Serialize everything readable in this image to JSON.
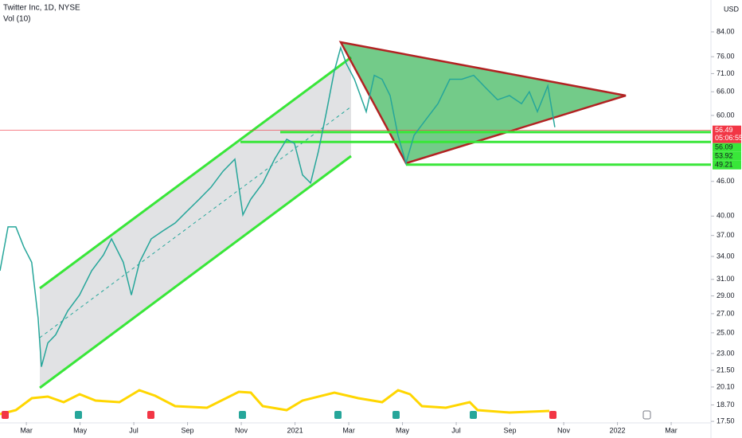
{
  "chart_data": {
    "type": "line",
    "title": "Twitter Inc, 1D, NYSE",
    "subtitle": "Vol (10)",
    "currency": "USD",
    "log_scale": true,
    "color": "#26a69a",
    "x": [
      1.02,
      1.32,
      1.61,
      1.91,
      2.2,
      2.44,
      2.56,
      2.8,
      3.09,
      3.54,
      3.98,
      4.43,
      4.87,
      5.17,
      5.61,
      5.91,
      6.21,
      6.65,
      7.09,
      7.54,
      7.98,
      8.43,
      8.87,
      9.32,
      9.76,
      10.06,
      10.35,
      10.8,
      11.24,
      11.69,
      11.98,
      12.28,
      12.58,
      12.87,
      13.17,
      13.46,
      13.7,
      13.91,
      14.21,
      14.65,
      14.95,
      15.24,
      15.54,
      15.83,
      16.13,
      16.43,
      16.87,
      17.32,
      17.76,
      18.21,
      18.65,
      19.09,
      19.54,
      19.98,
      20.43,
      20.72,
      21.02,
      21.41,
      21.67
    ],
    "values": [
      32.1,
      38.3,
      38.3,
      35.3,
      33.2,
      26.5,
      21.8,
      24.0,
      24.8,
      27.3,
      29.1,
      32.1,
      34.2,
      36.5,
      33.2,
      29.1,
      33.2,
      36.5,
      37.7,
      38.9,
      40.8,
      42.8,
      44.9,
      47.9,
      50.3,
      40.2,
      42.8,
      45.7,
      50.3,
      54.5,
      53.6,
      47.2,
      45.7,
      51.9,
      60.9,
      71.6,
      78.8,
      73.9,
      69.4,
      60.9,
      70.5,
      69.4,
      65.0,
      55.4,
      49.5,
      55.4,
      59.0,
      62.9,
      69.4,
      69.4,
      70.5,
      67.1,
      63.9,
      65.0,
      62.9,
      66.0,
      60.9,
      67.6,
      57.2
    ],
    "xlim": [
      1.02,
      27.48
    ],
    "ylim": [
      17.45,
      95.5
    ],
    "xticks": [
      {
        "value": 2,
        "label": "Mar"
      },
      {
        "value": 4,
        "label": "May"
      },
      {
        "value": 6,
        "label": "Jul"
      },
      {
        "value": 8,
        "label": "Sep"
      },
      {
        "value": 10,
        "label": "Nov"
      },
      {
        "value": 12,
        "label": "2021"
      },
      {
        "value": 14,
        "label": "Mar"
      },
      {
        "value": 16,
        "label": "May"
      },
      {
        "value": 18,
        "label": "Jul"
      },
      {
        "value": 20,
        "label": "Sep"
      },
      {
        "value": 22,
        "label": "Nov"
      },
      {
        "value": 24,
        "label": "2022"
      },
      {
        "value": 26,
        "label": "Mar"
      }
    ],
    "yticks": [
      {
        "value": 84,
        "label": "84.00"
      },
      {
        "value": 76,
        "label": "76.00"
      },
      {
        "value": 71,
        "label": "71.00"
      },
      {
        "value": 66,
        "label": "66.00"
      },
      {
        "value": 60,
        "label": "60.00"
      },
      {
        "value": 46,
        "label": "46.00"
      },
      {
        "value": 40,
        "label": "40.00"
      },
      {
        "value": 37,
        "label": "37.00"
      },
      {
        "value": 34,
        "label": "34.00"
      },
      {
        "value": 31,
        "label": "31.00"
      },
      {
        "value": 29,
        "label": "29.00"
      },
      {
        "value": 27,
        "label": "27.00"
      },
      {
        "value": 25,
        "label": "25.00"
      },
      {
        "value": 23,
        "label": "23.00"
      },
      {
        "value": 21.5,
        "label": "21.50"
      },
      {
        "value": 20.1,
        "label": "20.10"
      },
      {
        "value": 18.7,
        "label": "18.70"
      },
      {
        "value": 17.5,
        "label": "17.50"
      }
    ],
    "last_price": {
      "value": 56.49,
      "label": "56.49",
      "countdown": "05:06:55",
      "color": "#f23645"
    },
    "levels": [
      {
        "value": 56.09,
        "label": "56.09",
        "x": 11.45
      },
      {
        "value": 53.92,
        "label": "53.92",
        "x": 9.97
      },
      {
        "value": 49.21,
        "label": "49.21",
        "x": 16.13
      }
    ],
    "level_color": "#39e639"
  }
}
